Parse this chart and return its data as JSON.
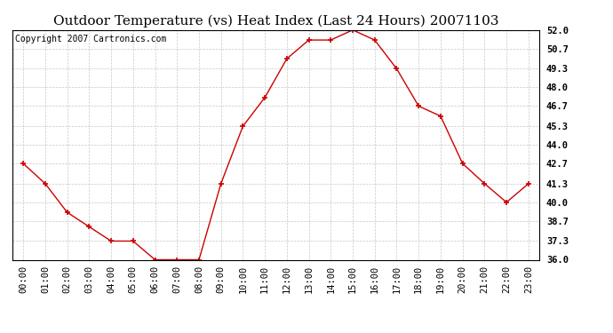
{
  "title": "Outdoor Temperature (vs) Heat Index (Last 24 Hours) 20071103",
  "copyright": "Copyright 2007 Cartronics.com",
  "x_labels": [
    "00:00",
    "01:00",
    "02:00",
    "03:00",
    "04:00",
    "05:00",
    "06:00",
    "07:00",
    "08:00",
    "09:00",
    "10:00",
    "11:00",
    "12:00",
    "13:00",
    "14:00",
    "15:00",
    "16:00",
    "17:00",
    "18:00",
    "19:00",
    "20:00",
    "21:00",
    "22:00",
    "23:00"
  ],
  "y_values": [
    42.7,
    41.3,
    39.3,
    38.3,
    37.3,
    37.3,
    36.0,
    36.0,
    36.0,
    41.3,
    45.3,
    47.3,
    50.0,
    51.3,
    51.3,
    52.0,
    51.3,
    49.3,
    46.7,
    46.0,
    42.7,
    41.3,
    40.0,
    41.3
  ],
  "line_color": "#cc0000",
  "marker": "+",
  "marker_color": "#cc0000",
  "marker_size": 5,
  "background_color": "#ffffff",
  "grid_color": "#c8c8c8",
  "y_min": 36.0,
  "y_max": 52.0,
  "y_ticks": [
    36.0,
    37.3,
    38.7,
    40.0,
    41.3,
    42.7,
    44.0,
    45.3,
    46.7,
    48.0,
    49.3,
    50.7,
    52.0
  ],
  "title_fontsize": 11,
  "copyright_fontsize": 7,
  "tick_fontsize": 7.5
}
